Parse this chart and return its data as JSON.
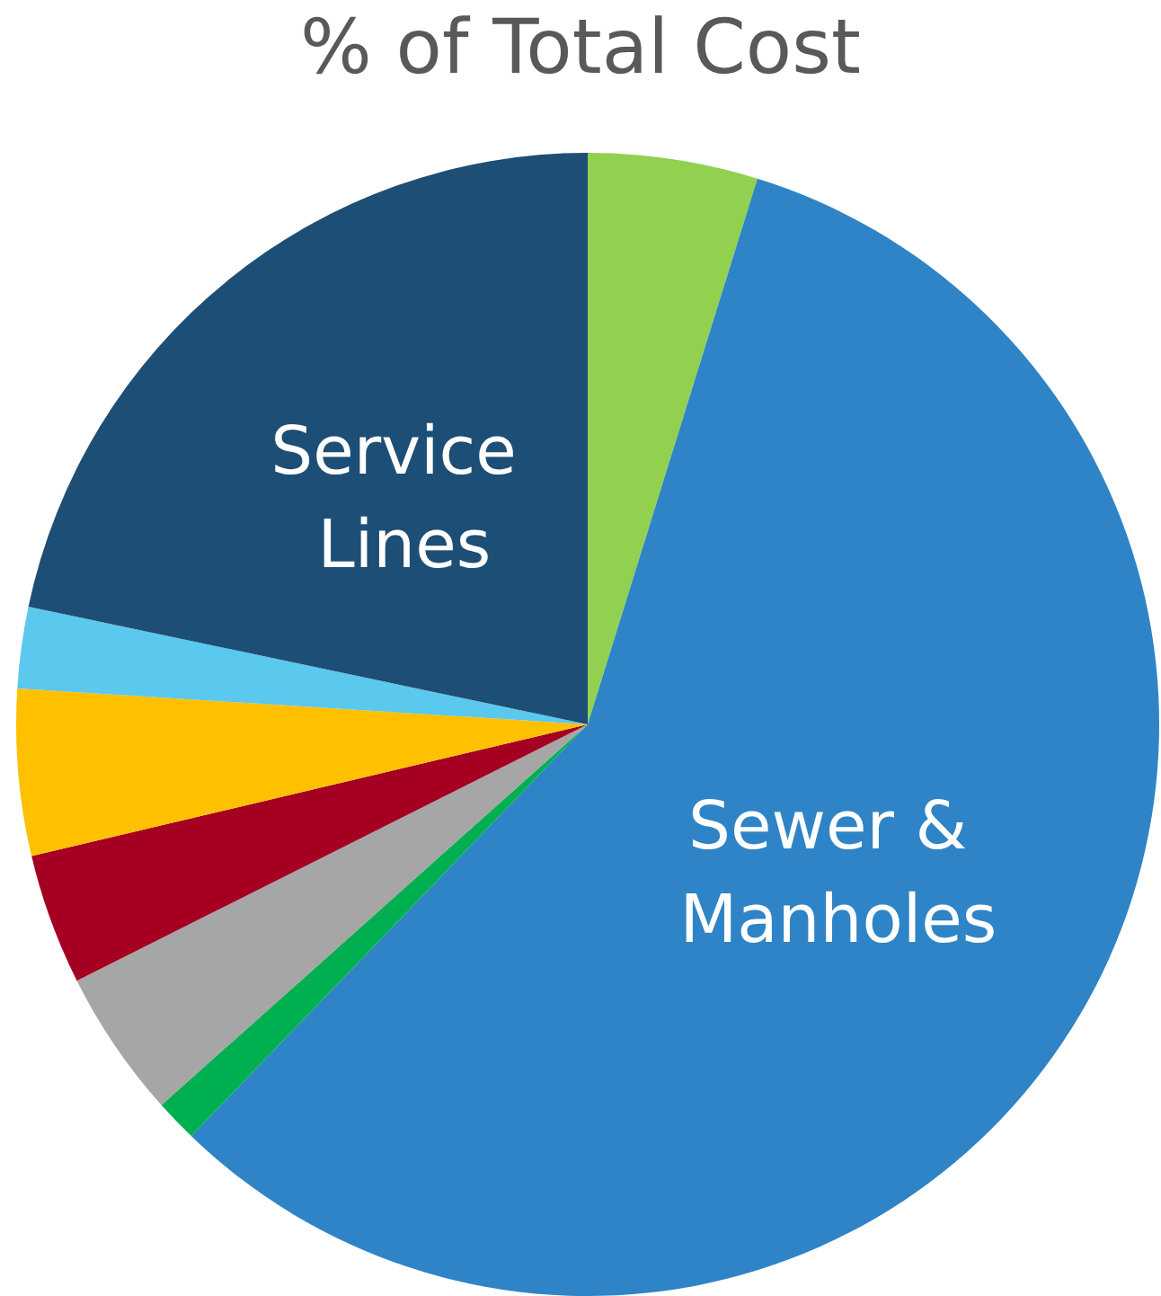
{
  "chart_data": {
    "type": "pie",
    "title": "% of Total Cost",
    "categories": [
      null,
      "Sewer & Manholes",
      null,
      null,
      null,
      null,
      null,
      "Service Lines"
    ],
    "values": [
      4.8,
      57.4,
      1.2,
      4.2,
      3.7,
      4.7,
      2.3,
      21.7
    ],
    "colors": [
      "#92d050",
      "#2e84c6",
      "#00b050",
      "#a6a6a6",
      "#a50021",
      "#ffc000",
      "#5bc8ee",
      "#1d4e75"
    ],
    "legend": false
  }
}
